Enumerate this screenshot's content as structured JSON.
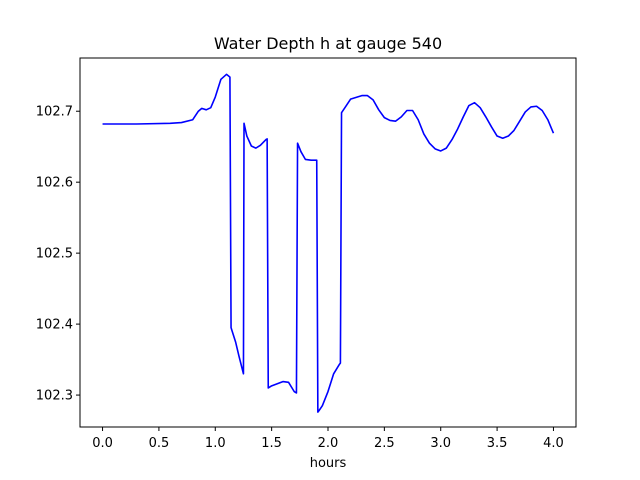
{
  "chart_data": {
    "type": "line",
    "title": "Water Depth h at gauge 540",
    "xlabel": "hours",
    "ylabel": "",
    "xlim": [
      -0.2,
      4.2
    ],
    "ylim": [
      102.255,
      102.775
    ],
    "xticks": [
      0.0,
      0.5,
      1.0,
      1.5,
      2.0,
      2.5,
      3.0,
      3.5,
      4.0
    ],
    "xtick_labels": [
      "0.0",
      "0.5",
      "1.0",
      "1.5",
      "2.0",
      "2.5",
      "3.0",
      "3.5",
      "4.0"
    ],
    "yticks": [
      102.3,
      102.4,
      102.5,
      102.6,
      102.7
    ],
    "ytick_labels": [
      "102.3",
      "102.4",
      "102.5",
      "102.6",
      "102.7"
    ],
    "grid": false,
    "series": [
      {
        "color": "#0000ff",
        "x": [
          0.0,
          0.3,
          0.6,
          0.7,
          0.8,
          0.85,
          0.88,
          0.92,
          0.96,
          1.0,
          1.05,
          1.1,
          1.13,
          1.14,
          1.15,
          1.18,
          1.21,
          1.25,
          1.255,
          1.28,
          1.32,
          1.36,
          1.4,
          1.45,
          1.46,
          1.47,
          1.5,
          1.55,
          1.6,
          1.65,
          1.7,
          1.72,
          1.73,
          1.76,
          1.8,
          1.85,
          1.9,
          1.91,
          1.92,
          1.95,
          2.0,
          2.05,
          2.1,
          2.11,
          2.12,
          2.15,
          2.2,
          2.3,
          2.35,
          2.4,
          2.45,
          2.5,
          2.55,
          2.6,
          2.65,
          2.7,
          2.75,
          2.8,
          2.85,
          2.9,
          2.95,
          3.0,
          3.05,
          3.1,
          3.15,
          3.2,
          3.25,
          3.3,
          3.35,
          3.4,
          3.45,
          3.5,
          3.55,
          3.6,
          3.65,
          3.7,
          3.75,
          3.8,
          3.85,
          3.9,
          3.95,
          4.0
        ],
        "y": [
          102.682,
          102.682,
          102.683,
          102.684,
          102.688,
          102.7,
          102.704,
          102.702,
          102.705,
          102.72,
          102.745,
          102.752,
          102.748,
          102.395,
          102.39,
          102.375,
          102.355,
          102.33,
          102.683,
          102.665,
          102.651,
          102.648,
          102.652,
          102.66,
          102.661,
          102.31,
          102.313,
          102.316,
          102.319,
          102.318,
          102.305,
          102.303,
          102.655,
          102.643,
          102.632,
          102.631,
          102.631,
          102.276,
          102.278,
          102.285,
          102.305,
          102.33,
          102.343,
          102.345,
          102.698,
          102.705,
          102.717,
          102.722,
          102.722,
          102.716,
          102.702,
          102.691,
          102.687,
          102.686,
          102.692,
          102.701,
          102.701,
          102.688,
          102.668,
          102.655,
          102.647,
          102.644,
          102.648,
          102.66,
          102.675,
          102.692,
          102.708,
          102.712,
          102.705,
          102.692,
          102.678,
          102.665,
          102.662,
          102.665,
          102.673,
          102.686,
          102.699,
          102.706,
          102.707,
          102.701,
          102.688,
          102.669
        ]
      }
    ]
  }
}
